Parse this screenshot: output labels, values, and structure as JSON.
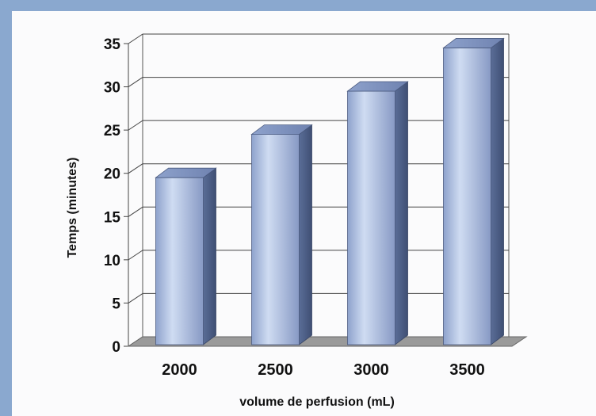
{
  "chart_data": {
    "type": "bar",
    "style": "3d-cylinder",
    "categories": [
      "2000",
      "2500",
      "3000",
      "3500"
    ],
    "values": [
      19.5,
      24.5,
      29.5,
      34.5
    ],
    "xlabel": "volume de perfusion (mL)",
    "ylabel": "Temps (minutes)",
    "ylim": [
      0,
      35
    ],
    "yticks": [
      "0",
      "5",
      "10",
      "15",
      "20",
      "25",
      "30",
      "35"
    ],
    "grid": true,
    "legend": "none",
    "colors": {
      "bar_light": "#c9d7ee",
      "bar_mid": "#93a9d6",
      "bar_dark": "#55688f",
      "floor": "#9a9a9a",
      "frame": "#8aa8cf"
    }
  }
}
